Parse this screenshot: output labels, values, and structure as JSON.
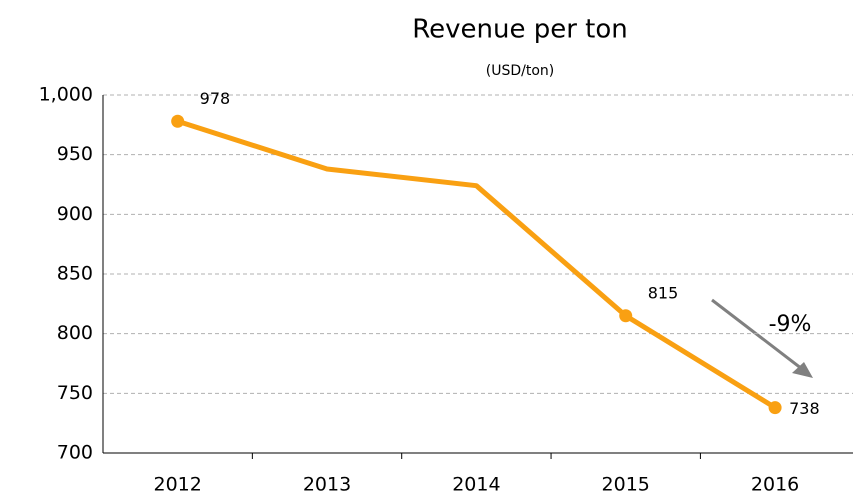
{
  "chart_data": {
    "type": "line",
    "title": "Revenue per ton",
    "subtitle": "(USD/ton)",
    "categories": [
      "2012",
      "2013",
      "2014",
      "2015",
      "2016"
    ],
    "series": [
      {
        "name": "Revenue per ton",
        "color": "#f9a012",
        "values": [
          978,
          938,
          924,
          815,
          738
        ],
        "value_labels": [
          "978",
          null,
          null,
          "815",
          "738"
        ]
      }
    ],
    "ylim": [
      700,
      1000
    ],
    "yticks": [
      700,
      750,
      800,
      850,
      900,
      950,
      {
        "value": 1000,
        "label": "1,000"
      }
    ],
    "grid": true,
    "annotation": "-9%"
  }
}
